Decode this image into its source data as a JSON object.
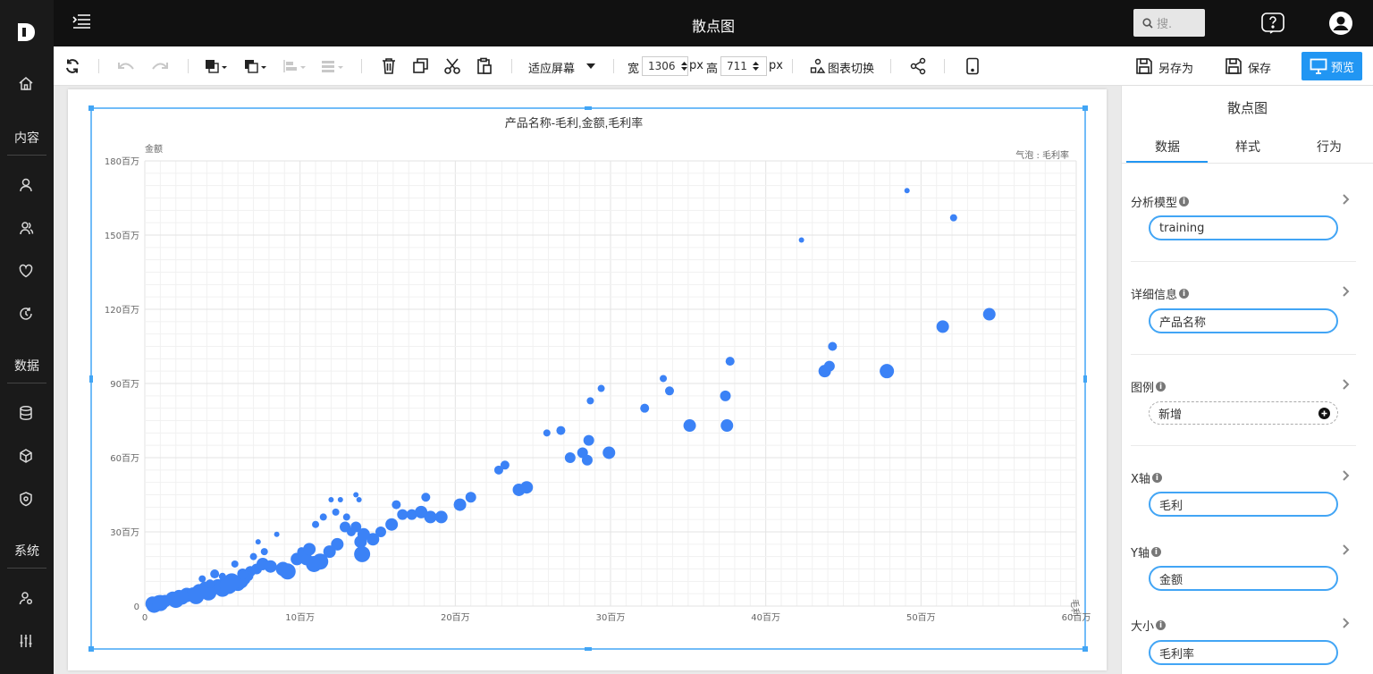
{
  "app": {
    "title": "散点图",
    "logo_letter": "D"
  },
  "sidebar": {
    "sections": [
      {
        "label": "内容"
      },
      {
        "label": "数据"
      },
      {
        "label": "系统"
      }
    ],
    "icons": [
      "home-icon",
      "user-icon",
      "users-icon",
      "heart-icon",
      "history-icon",
      "database-icon",
      "cube-icon",
      "shield-icon",
      "user-settings-icon",
      "sliders-icon"
    ]
  },
  "topbar": {
    "search_placeholder": "搜."
  },
  "toolbar": {
    "zoom_label": "适应屏幕",
    "width_label": "宽",
    "width_value": "1306",
    "height_label": "高",
    "height_value": "711",
    "unit": "px",
    "switch_chart": "图表切换",
    "save_as": "另存为",
    "save": "保存",
    "preview": "预览"
  },
  "panel": {
    "title": "散点图",
    "tabs": [
      "数据",
      "样式",
      "行为"
    ],
    "active_tab": "数据",
    "fields": [
      {
        "label": "分析模型",
        "value": "training"
      },
      {
        "label": "详细信息",
        "value": "产品名称"
      },
      {
        "label": "图例",
        "value": "新增"
      },
      {
        "label": "X轴",
        "value": "毛利"
      },
      {
        "label": "Y轴",
        "value": "金额"
      },
      {
        "label": "大小",
        "value": "毛利率"
      }
    ]
  },
  "colors": {
    "accent": "#2196f3",
    "point": "#3b82f6",
    "topbar": "#111111",
    "sidebar": "#1a1a1a"
  },
  "chart_data": {
    "type": "scatter",
    "title": "产品名称-毛利,金额,毛利率",
    "xlabel": "毛利",
    "ylabel": "金额",
    "size_label": "气泡 : 毛利率",
    "xlim": [
      0,
      60
    ],
    "ylim": [
      0,
      180
    ],
    "x_ticks": [
      "0",
      "10百万",
      "20百万",
      "30百万",
      "40百万",
      "50百万",
      "60百万"
    ],
    "y_ticks": [
      "0",
      "30百万",
      "60百万",
      "90百万",
      "120百万",
      "150百万",
      "180百万"
    ],
    "grid": true,
    "points": [
      [
        0.5,
        1,
        8
      ],
      [
        0.9,
        1.5,
        8
      ],
      [
        1.3,
        2,
        7
      ],
      [
        1.8,
        3,
        8
      ],
      [
        2.2,
        4,
        7
      ],
      [
        2.7,
        4.5,
        8
      ],
      [
        3.1,
        5,
        7
      ],
      [
        3.5,
        6,
        8
      ],
      [
        3.9,
        7,
        8
      ],
      [
        4.3,
        6.5,
        7
      ],
      [
        4.7,
        8,
        8
      ],
      [
        5.2,
        9,
        8
      ],
      [
        5.6,
        10,
        9
      ],
      [
        6.0,
        9,
        8
      ],
      [
        6.4,
        11,
        7
      ],
      [
        6.8,
        14,
        6
      ],
      [
        7.2,
        15,
        6
      ],
      [
        7.6,
        17,
        7
      ],
      [
        8.1,
        16,
        7
      ],
      [
        8.9,
        15,
        8
      ],
      [
        9.8,
        19,
        7
      ],
      [
        10.4,
        19,
        7
      ],
      [
        10.9,
        17,
        9
      ],
      [
        11.3,
        18,
        9
      ],
      [
        11.9,
        22,
        7
      ],
      [
        12.4,
        25,
        7
      ],
      [
        12.9,
        32,
        6
      ],
      [
        13.3,
        30,
        5
      ],
      [
        13.6,
        32,
        6
      ],
      [
        13.9,
        26,
        7
      ],
      [
        14.0,
        21,
        9
      ],
      [
        14.7,
        27,
        7
      ],
      [
        15.2,
        30,
        6
      ],
      [
        15.9,
        33,
        7
      ],
      [
        16.6,
        37,
        6
      ],
      [
        17.2,
        37,
        6
      ],
      [
        17.8,
        38,
        7
      ],
      [
        18.4,
        36,
        7
      ],
      [
        19.1,
        36,
        7
      ],
      [
        16.2,
        41,
        5
      ],
      [
        18.1,
        44,
        5
      ],
      [
        20.3,
        41,
        7
      ],
      [
        21.0,
        44,
        6
      ],
      [
        22.8,
        55,
        5
      ],
      [
        23.2,
        57,
        5
      ],
      [
        24.1,
        47,
        7
      ],
      [
        24.6,
        48,
        7
      ],
      [
        25.9,
        70,
        4
      ],
      [
        26.8,
        71,
        5
      ],
      [
        27.4,
        60,
        6
      ],
      [
        28.2,
        62,
        6
      ],
      [
        28.5,
        59,
        6
      ],
      [
        28.6,
        67,
        6
      ],
      [
        29.9,
        62,
        7
      ],
      [
        28.7,
        83,
        4
      ],
      [
        29.4,
        88,
        4
      ],
      [
        32.2,
        80,
        5
      ],
      [
        33.4,
        92,
        4
      ],
      [
        33.8,
        87,
        5
      ],
      [
        35.1,
        73,
        7
      ],
      [
        37.4,
        85,
        6
      ],
      [
        37.5,
        73,
        7
      ],
      [
        37.7,
        99,
        5
      ],
      [
        42.3,
        148,
        3
      ],
      [
        43.8,
        95,
        7
      ],
      [
        44.1,
        97,
        6
      ],
      [
        44.3,
        105,
        5
      ],
      [
        47.8,
        95,
        8
      ],
      [
        49.1,
        168,
        3
      ],
      [
        51.4,
        113,
        7
      ],
      [
        52.1,
        157,
        4
      ],
      [
        54.4,
        118,
        7
      ],
      [
        0.6,
        0.5,
        9
      ],
      [
        1.0,
        1.2,
        9
      ],
      [
        2.0,
        2.5,
        9
      ],
      [
        2.4,
        3.5,
        8
      ],
      [
        3.3,
        4,
        9
      ],
      [
        4.1,
        5.5,
        9
      ],
      [
        5.0,
        7,
        9
      ],
      [
        5.4,
        8.5,
        10
      ],
      [
        6.2,
        10,
        8
      ],
      [
        6.7,
        12,
        5
      ],
      [
        7.0,
        20,
        4
      ],
      [
        7.3,
        26,
        3
      ],
      [
        7.7,
        22,
        4
      ],
      [
        8.5,
        29,
        3
      ],
      [
        9.2,
        14,
        9
      ],
      [
        10.1,
        22,
        5
      ],
      [
        10.6,
        23,
        7
      ],
      [
        11.0,
        33,
        4
      ],
      [
        11.5,
        36,
        4
      ],
      [
        12.0,
        43,
        3
      ],
      [
        12.3,
        38,
        4
      ],
      [
        12.6,
        43,
        3
      ],
      [
        13.0,
        36,
        4
      ],
      [
        13.6,
        45,
        3
      ],
      [
        13.8,
        43,
        3
      ],
      [
        14.1,
        29,
        7
      ],
      [
        4.5,
        13,
        5
      ],
      [
        5.8,
        17,
        4
      ],
      [
        6.3,
        13,
        6
      ],
      [
        3.7,
        11,
        4
      ],
      [
        4.2,
        9,
        5
      ],
      [
        5.0,
        12,
        4
      ]
    ]
  }
}
